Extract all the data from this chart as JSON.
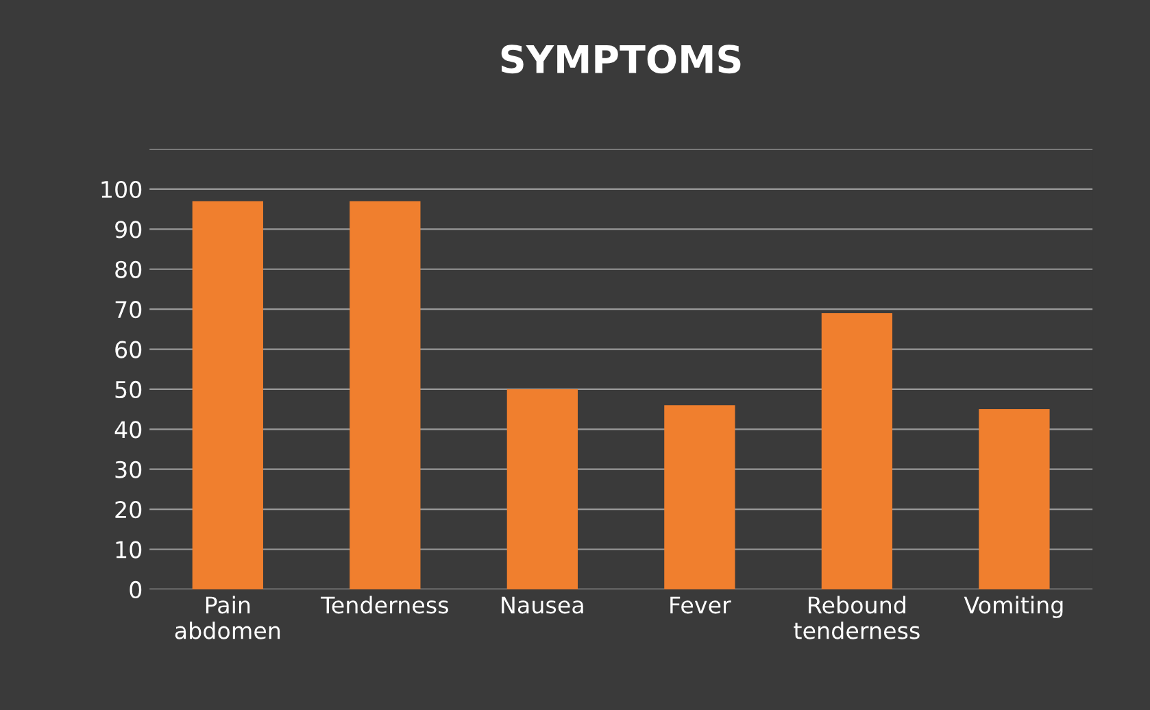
{
  "chart_data": {
    "type": "bar",
    "title": "SYMPTOMS",
    "categories": [
      "Pain\nabdomen",
      "Tenderness",
      "Nausea",
      "Fever",
      "Rebound\ntenderness",
      "Vomiting"
    ],
    "values": [
      97,
      97,
      50,
      46,
      69,
      45
    ],
    "color": "#f07f2e",
    "ylim": [
      0,
      110
    ],
    "yticks": [
      0,
      10,
      20,
      30,
      40,
      50,
      60,
      70,
      80,
      90,
      100,
      {
        "value": 110,
        "label": null
      }
    ],
    "grid": "y",
    "legend": false
  }
}
